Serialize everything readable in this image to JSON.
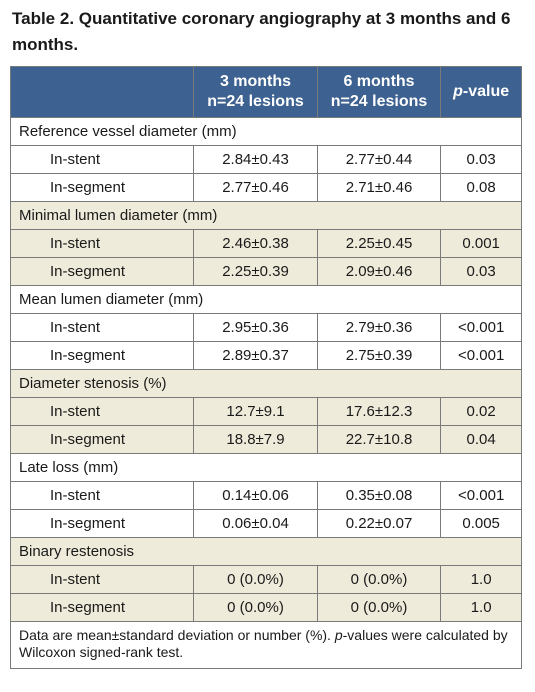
{
  "caption": "Table 2. Quantitative coronary angiography at 3 months and 6 months.",
  "columns": {
    "c3_line1": "3 months",
    "c3_line2": "n=24 lesions",
    "c6_line1": "6 months",
    "c6_line2": "n=24 lesions",
    "p_italic": "p",
    "p_rest": "-value"
  },
  "sections": [
    {
      "title": "Reference vessel diameter (mm)",
      "shade": "w",
      "rows": [
        {
          "label": "In-stent",
          "m3": "2.84±0.43",
          "m6": "2.77±0.44",
          "p": "0.03"
        },
        {
          "label": "In-segment",
          "m3": "2.77±0.46",
          "m6": "2.71±0.46",
          "p": "0.08"
        }
      ]
    },
    {
      "title": "Minimal lumen diameter (mm)",
      "shade": "b",
      "rows": [
        {
          "label": "In-stent",
          "m3": "2.46±0.38",
          "m6": "2.25±0.45",
          "p": "0.001"
        },
        {
          "label": "In-segment",
          "m3": "2.25±0.39",
          "m6": "2.09±0.46",
          "p": "0.03"
        }
      ]
    },
    {
      "title": "Mean lumen diameter (mm)",
      "shade": "w",
      "rows": [
        {
          "label": "In-stent",
          "m3": "2.95±0.36",
          "m6": "2.79±0.36",
          "p": "<0.001"
        },
        {
          "label": "In-segment",
          "m3": "2.89±0.37",
          "m6": "2.75±0.39",
          "p": "<0.001"
        }
      ]
    },
    {
      "title": "Diameter stenosis (%)",
      "shade": "b",
      "rows": [
        {
          "label": "In-stent",
          "m3": "12.7±9.1",
          "m6": "17.6±12.3",
          "p": "0.02"
        },
        {
          "label": "In-segment",
          "m3": "18.8±7.9",
          "m6": "22.7±10.8",
          "p": "0.04"
        }
      ]
    },
    {
      "title": "Late loss (mm)",
      "shade": "w",
      "rows": [
        {
          "label": "In-stent",
          "m3": "0.14±0.06",
          "m6": "0.35±0.08",
          "p": "<0.001"
        },
        {
          "label": "In-segment",
          "m3": "0.06±0.04",
          "m6": "0.22±0.07",
          "p": "0.005"
        }
      ]
    },
    {
      "title": "Binary restenosis",
      "shade": "b",
      "rows": [
        {
          "label": "In-stent",
          "m3": "0 (0.0%)",
          "m6": "0 (0.0%)",
          "p": "1.0"
        },
        {
          "label": "In-segment",
          "m3": "0 (0.0%)",
          "m6": "0 (0.0%)",
          "p": "1.0"
        }
      ]
    }
  ],
  "footnote": {
    "part1": "Data are mean±standard deviation or number (%). ",
    "p_italic": "p",
    "part2": "-values were calculated by Wilcoxon signed-rank test."
  },
  "colors": {
    "header_bg": "#3d6190",
    "header_text": "#ffffff",
    "shade_row": "#efebda",
    "border": "#7a7a7a"
  }
}
